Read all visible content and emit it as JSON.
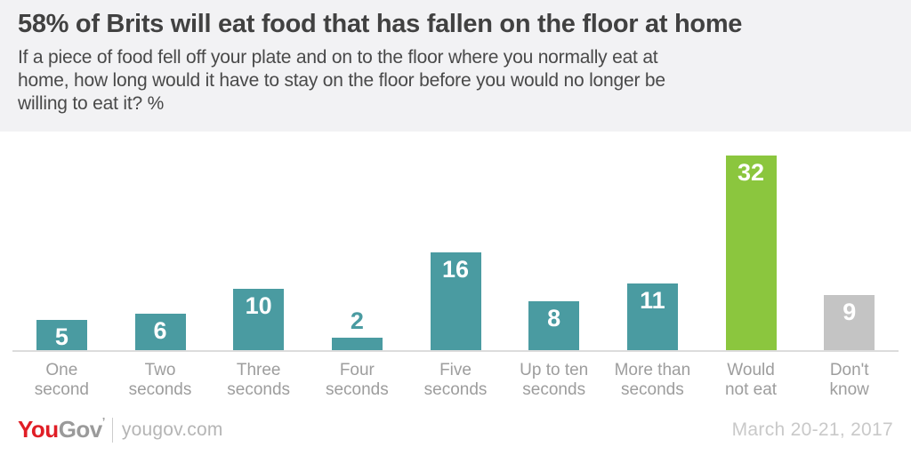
{
  "header": {
    "title": "58% of Brits will eat food that has fallen on the floor at home",
    "subtitle": "If a piece of food fell off your plate and on to the floor where you normally eat at\nhome, how long would it have to stay on the floor before you would no longer be\nwilling to eat it? %"
  },
  "chart_data": {
    "type": "bar",
    "categories": [
      "One\nsecond",
      "Two\nseconds",
      "Three\nseconds",
      "Four\nseconds",
      "Five\nseconds",
      "Up to ten\nseconds",
      "More than\nseconds",
      "Would\nnot eat",
      "Don't\nknow"
    ],
    "values": [
      5,
      6,
      10,
      2,
      16,
      8,
      11,
      32,
      9
    ],
    "colors": [
      "#4a9ba1",
      "#4a9ba1",
      "#4a9ba1",
      "#4a9ba1",
      "#4a9ba1",
      "#4a9ba1",
      "#4a9ba1",
      "#8bc63e",
      "#c4c4c4"
    ],
    "title": "58% of Brits will eat food that has fallen on the floor at home",
    "xlabel": "",
    "ylabel": "",
    "ylim": [
      0,
      36
    ],
    "unit": "%",
    "grid": false,
    "legend": "none",
    "value_labels": "inside-top, white; shown above bar in bar color when bar too short"
  },
  "colors": {
    "header_bg": "#f2f2f4",
    "teal_bar": "#4a9ba1",
    "green_bar": "#8bc63e",
    "gray_bar": "#c4c4c4",
    "baseline": "#dcdcdc",
    "title_text": "#414141",
    "subtitle_text": "#494949",
    "category_label": "#9d9d9d",
    "logo_red": "#e01e26",
    "logo_gray": "#9a9a9a",
    "footer_text": "#b5b5b5",
    "date_text": "#c9c9c9"
  },
  "footer": {
    "logo_you": "You",
    "logo_gov": "Gov",
    "logo_mark": "’",
    "site": "yougov.com",
    "date": "March 20-21, 2017"
  }
}
